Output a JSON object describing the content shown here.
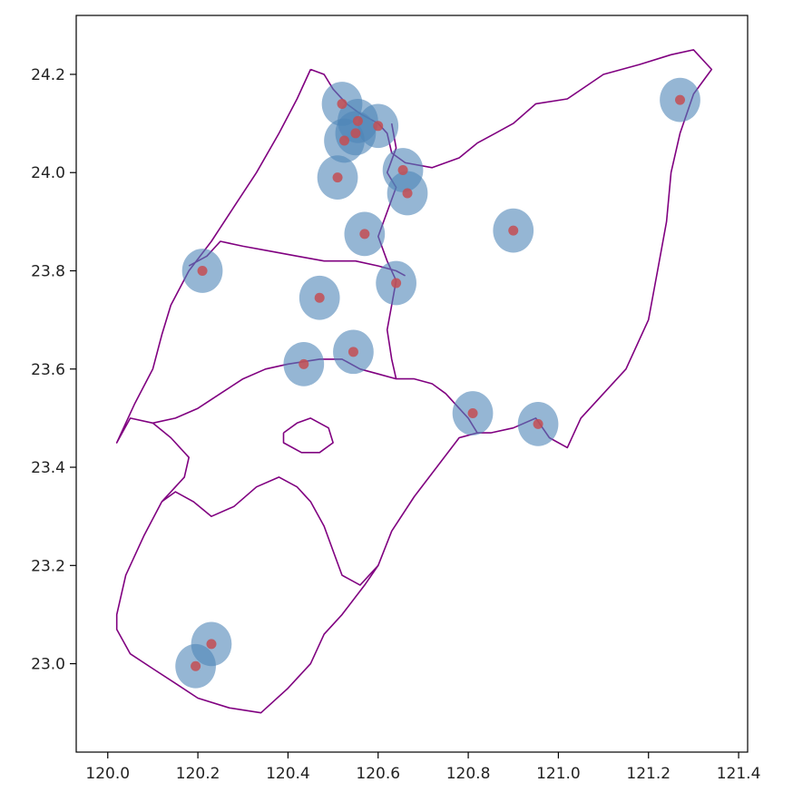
{
  "chart_data": {
    "type": "scatter",
    "title": "",
    "xlabel": "",
    "ylabel": "",
    "xlim": [
      119.93,
      121.42
    ],
    "ylim": [
      22.82,
      24.32
    ],
    "x_ticks": [
      "120.0",
      "120.2",
      "120.4",
      "120.6",
      "120.8",
      "121.0",
      "121.2",
      "121.4"
    ],
    "y_ticks": [
      "23.0",
      "23.2",
      "23.4",
      "23.6",
      "23.8",
      "24.0",
      "24.2"
    ],
    "grid": false,
    "colors": {
      "boundary": "#800080",
      "buffer": "#4f86b8",
      "point": "#c44e52"
    },
    "series": [
      {
        "points": [
          [
            120.52,
            24.14
          ],
          [
            120.555,
            24.105
          ],
          [
            120.6,
            24.095
          ],
          [
            120.55,
            24.08
          ],
          [
            120.525,
            24.065
          ],
          [
            120.655,
            24.005
          ],
          [
            120.51,
            23.99
          ],
          [
            120.665,
            23.958
          ],
          [
            120.57,
            23.875
          ],
          [
            120.9,
            23.882
          ],
          [
            121.27,
            24.148
          ],
          [
            120.21,
            23.8
          ],
          [
            120.47,
            23.745
          ],
          [
            120.64,
            23.775
          ],
          [
            120.545,
            23.635
          ],
          [
            120.435,
            23.61
          ],
          [
            120.81,
            23.51
          ],
          [
            120.955,
            23.488
          ],
          [
            120.23,
            23.04
          ],
          [
            120.195,
            22.995
          ]
        ],
        "buffer_radius": 0.045
      }
    ],
    "boundaries": [
      [
        [
          120.45,
          24.21
        ],
        [
          120.48,
          24.2
        ],
        [
          120.5,
          24.17
        ],
        [
          120.53,
          24.14
        ],
        [
          120.56,
          24.12
        ],
        [
          120.6,
          24.1
        ],
        [
          120.62,
          24.08
        ],
        [
          120.63,
          24.04
        ],
        [
          120.66,
          24.02
        ],
        [
          120.72,
          24.01
        ],
        [
          120.78,
          24.03
        ],
        [
          120.82,
          24.06
        ],
        [
          120.86,
          24.08
        ],
        [
          120.9,
          24.1
        ],
        [
          120.95,
          24.14
        ],
        [
          121.02,
          24.15
        ],
        [
          121.1,
          24.2
        ],
        [
          121.18,
          24.22
        ],
        [
          121.25,
          24.24
        ],
        [
          121.3,
          24.25
        ],
        [
          121.34,
          24.21
        ],
        [
          121.3,
          24.16
        ],
        [
          121.27,
          24.08
        ],
        [
          121.25,
          24.0
        ],
        [
          121.24,
          23.9
        ],
        [
          121.22,
          23.8
        ],
        [
          121.2,
          23.7
        ],
        [
          121.15,
          23.6
        ],
        [
          121.1,
          23.55
        ],
        [
          121.05,
          23.5
        ],
        [
          121.02,
          23.44
        ],
        [
          120.98,
          23.46
        ],
        [
          120.95,
          23.5
        ],
        [
          120.9,
          23.48
        ],
        [
          120.85,
          23.47
        ],
        [
          120.82,
          23.47
        ],
        [
          120.8,
          23.5
        ],
        [
          120.78,
          23.52
        ],
        [
          120.75,
          23.55
        ],
        [
          120.72,
          23.57
        ],
        [
          120.68,
          23.58
        ],
        [
          120.64,
          23.58
        ],
        [
          120.6,
          23.59
        ],
        [
          120.56,
          23.6
        ],
        [
          120.52,
          23.62
        ],
        [
          120.47,
          23.62
        ],
        [
          120.4,
          23.61
        ],
        [
          120.35,
          23.6
        ],
        [
          120.3,
          23.58
        ],
        [
          120.25,
          23.55
        ],
        [
          120.2,
          23.52
        ],
        [
          120.15,
          23.5
        ],
        [
          120.1,
          23.49
        ],
        [
          120.05,
          23.5
        ],
        [
          120.02,
          23.45
        ],
        [
          120.03,
          23.47
        ],
        [
          120.06,
          23.53
        ],
        [
          120.1,
          23.6
        ],
        [
          120.12,
          23.67
        ],
        [
          120.14,
          23.73
        ],
        [
          120.18,
          23.8
        ],
        [
          120.23,
          23.86
        ],
        [
          120.28,
          23.93
        ],
        [
          120.33,
          24.0
        ],
        [
          120.38,
          24.08
        ],
        [
          120.42,
          24.15
        ],
        [
          120.45,
          24.21
        ]
      ],
      [
        [
          120.18,
          23.81
        ],
        [
          120.22,
          23.83
        ],
        [
          120.25,
          23.86
        ],
        [
          120.3,
          23.85
        ],
        [
          120.36,
          23.84
        ],
        [
          120.42,
          23.83
        ],
        [
          120.48,
          23.82
        ],
        [
          120.55,
          23.82
        ],
        [
          120.6,
          23.81
        ],
        [
          120.64,
          23.8
        ],
        [
          120.66,
          23.79
        ]
      ],
      [
        [
          120.63,
          24.1
        ],
        [
          120.64,
          24.05
        ],
        [
          120.62,
          24.0
        ],
        [
          120.64,
          23.97
        ],
        [
          120.62,
          23.92
        ],
        [
          120.6,
          23.87
        ],
        [
          120.62,
          23.82
        ],
        [
          120.64,
          23.78
        ],
        [
          120.63,
          23.73
        ],
        [
          120.62,
          23.68
        ],
        [
          120.63,
          23.62
        ],
        [
          120.64,
          23.58
        ]
      ],
      [
        [
          120.1,
          23.49
        ],
        [
          120.14,
          23.46
        ],
        [
          120.18,
          23.42
        ],
        [
          120.17,
          23.38
        ],
        [
          120.12,
          23.33
        ],
        [
          120.08,
          23.26
        ],
        [
          120.04,
          23.18
        ],
        [
          120.02,
          23.1
        ],
        [
          120.02,
          23.07
        ],
        [
          120.05,
          23.02
        ],
        [
          120.1,
          22.99
        ],
        [
          120.15,
          22.96
        ],
        [
          120.2,
          22.93
        ],
        [
          120.27,
          22.91
        ],
        [
          120.34,
          22.9
        ],
        [
          120.4,
          22.95
        ],
        [
          120.45,
          23.0
        ],
        [
          120.48,
          23.06
        ],
        [
          120.52,
          23.1
        ],
        [
          120.57,
          23.16
        ],
        [
          120.6,
          23.2
        ],
        [
          120.63,
          23.27
        ],
        [
          120.68,
          23.34
        ],
        [
          120.73,
          23.4
        ],
        [
          120.78,
          23.46
        ],
        [
          120.82,
          23.47
        ]
      ],
      [
        [
          120.12,
          23.33
        ],
        [
          120.15,
          23.35
        ],
        [
          120.19,
          23.33
        ],
        [
          120.23,
          23.3
        ],
        [
          120.28,
          23.32
        ],
        [
          120.33,
          23.36
        ],
        [
          120.38,
          23.38
        ],
        [
          120.42,
          23.36
        ],
        [
          120.45,
          23.33
        ],
        [
          120.48,
          23.28
        ],
        [
          120.5,
          23.23
        ],
        [
          120.52,
          23.18
        ],
        [
          120.56,
          23.16
        ],
        [
          120.6,
          23.2
        ]
      ],
      [
        [
          120.39,
          23.47
        ],
        [
          120.42,
          23.49
        ],
        [
          120.45,
          23.5
        ],
        [
          120.49,
          23.48
        ],
        [
          120.5,
          23.45
        ],
        [
          120.47,
          23.43
        ],
        [
          120.43,
          23.43
        ],
        [
          120.39,
          23.45
        ],
        [
          120.39,
          23.47
        ]
      ]
    ]
  }
}
